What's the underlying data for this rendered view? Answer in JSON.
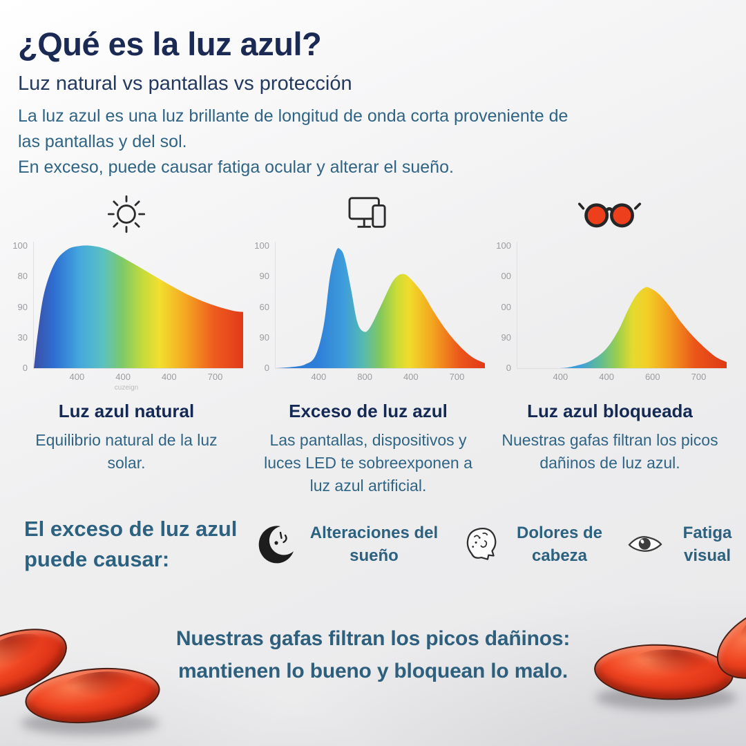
{
  "page": {
    "title": "¿Qué es la luz azul?",
    "subtitle": "Luz natural vs pantallas vs protección",
    "intro": [
      "La luz azul es una luz brillante de longitud de onda corta proveniente de",
      "las pantallas y del sol.",
      "En exceso, puede causar fatiga ocular y alterar el sueño."
    ]
  },
  "colors": {
    "title_navy": "#1b2a55",
    "body_teal": "#2f6484",
    "heading_teal": "#2c617f",
    "tick_gray": "#9b9ba0",
    "lens_red": "#ef4421",
    "icon_dark": "#2b2b2b"
  },
  "chart_data": [
    {
      "type": "area",
      "title": "Luz azul natural",
      "description": "Equilibrio natural de la luz solar.",
      "icon": "sun-icon",
      "xlabel": "",
      "ylabel": "",
      "ylim": [
        0,
        100
      ],
      "y_ticks": [
        "100",
        "80",
        "90",
        "30",
        "0"
      ],
      "x_ticks": [
        "400",
        "400",
        "400",
        "700"
      ],
      "watermark": "cuzeign",
      "points": [
        [
          0,
          0
        ],
        [
          2,
          30
        ],
        [
          5,
          62
        ],
        [
          10,
          86
        ],
        [
          16,
          97
        ],
        [
          22,
          100
        ],
        [
          28,
          100
        ],
        [
          35,
          97
        ],
        [
          45,
          88
        ],
        [
          55,
          78
        ],
        [
          65,
          68
        ],
        [
          75,
          59
        ],
        [
          85,
          52
        ],
        [
          95,
          47
        ],
        [
          100,
          46
        ]
      ],
      "gradient": [
        [
          0,
          "#3c4fa5"
        ],
        [
          10,
          "#2e6fd3"
        ],
        [
          22,
          "#45a8dd"
        ],
        [
          33,
          "#5bc1c0"
        ],
        [
          42,
          "#7cc969"
        ],
        [
          52,
          "#c4db3b"
        ],
        [
          60,
          "#f2df2e"
        ],
        [
          72,
          "#f4a922"
        ],
        [
          86,
          "#ee5c1e"
        ],
        [
          100,
          "#e13a1a"
        ]
      ]
    },
    {
      "type": "area",
      "title": "Exceso de luz azul",
      "description": "Las pantallas, dispositivos y luces LED te sobreexponen a luz azul artificial.",
      "icon": "devices-icon",
      "xlabel": "",
      "ylabel": "",
      "ylim": [
        0,
        100
      ],
      "y_ticks": [
        "100",
        "90",
        "60",
        "90",
        "0"
      ],
      "x_ticks": [
        "400",
        "800",
        "400",
        "700"
      ],
      "watermark": "",
      "points": [
        [
          0,
          0
        ],
        [
          8,
          1
        ],
        [
          14,
          3
        ],
        [
          19,
          10
        ],
        [
          23,
          35
        ],
        [
          26,
          75
        ],
        [
          29,
          96
        ],
        [
          31,
          97
        ],
        [
          33,
          90
        ],
        [
          36,
          65
        ],
        [
          39,
          38
        ],
        [
          42,
          30
        ],
        [
          45,
          33
        ],
        [
          50,
          50
        ],
        [
          55,
          68
        ],
        [
          58,
          75
        ],
        [
          61,
          77
        ],
        [
          64,
          74
        ],
        [
          70,
          62
        ],
        [
          76,
          45
        ],
        [
          82,
          30
        ],
        [
          88,
          18
        ],
        [
          94,
          9
        ],
        [
          100,
          4
        ]
      ],
      "gradient": [
        [
          0,
          "#2a79d8"
        ],
        [
          20,
          "#2e7fd9"
        ],
        [
          33,
          "#3f9ddb"
        ],
        [
          42,
          "#56bbaf"
        ],
        [
          50,
          "#83c75d"
        ],
        [
          58,
          "#cddd37"
        ],
        [
          64,
          "#f1db2b"
        ],
        [
          75,
          "#f3a51f"
        ],
        [
          88,
          "#eb561b"
        ],
        [
          100,
          "#e23917"
        ]
      ]
    },
    {
      "type": "area",
      "title": "Luz azul bloqueada",
      "description": "Nuestras gafas filtran los picos dañinos de luz azul.",
      "icon": "sunglasses-icon",
      "xlabel": "",
      "ylabel": "",
      "ylim": [
        0,
        100
      ],
      "y_ticks": [
        "100",
        "00",
        "00",
        "90",
        "0"
      ],
      "x_ticks": [
        "400",
        "400",
        "600",
        "700"
      ],
      "watermark": "",
      "points": [
        [
          0,
          0
        ],
        [
          20,
          0
        ],
        [
          28,
          2
        ],
        [
          35,
          6
        ],
        [
          42,
          15
        ],
        [
          48,
          30
        ],
        [
          53,
          48
        ],
        [
          57,
          60
        ],
        [
          61,
          66
        ],
        [
          64,
          65
        ],
        [
          68,
          60
        ],
        [
          73,
          50
        ],
        [
          78,
          38
        ],
        [
          84,
          26
        ],
        [
          90,
          16
        ],
        [
          95,
          9
        ],
        [
          100,
          5
        ]
      ],
      "gradient": [
        [
          0,
          "#2f7ad6"
        ],
        [
          30,
          "#3f9fd9"
        ],
        [
          40,
          "#62bd92"
        ],
        [
          48,
          "#9ccf4c"
        ],
        [
          55,
          "#e4da2f"
        ],
        [
          62,
          "#f2cf27"
        ],
        [
          72,
          "#f2a01e"
        ],
        [
          85,
          "#ea5519"
        ],
        [
          100,
          "#df3916"
        ]
      ]
    }
  ],
  "effects": {
    "heading": "El exceso de luz azul puede causar:",
    "items": [
      {
        "icon": "crescent-moon-icon",
        "label": "Alteraciones del sueño"
      },
      {
        "icon": "head-brain-icon",
        "label": "Dolores de cabeza"
      },
      {
        "icon": "eye-icon",
        "label": "Fatiga visual"
      }
    ]
  },
  "footer": {
    "line1": "Nuestras gafas filtran los picos dañinos:",
    "line2": "mantienen lo bueno y bloquean lo malo."
  }
}
